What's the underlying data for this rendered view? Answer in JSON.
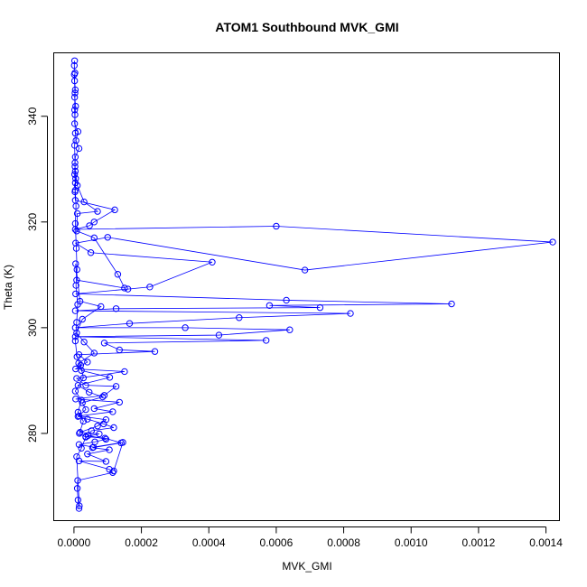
{
  "chart_data": {
    "type": "line",
    "title": "ATOM1 Southbound MVK_GMI",
    "xlabel": "MVK_GMI",
    "ylabel": "Theta (K)",
    "xlim": [
      -6e-05,
      0.00144
    ],
    "ylim": [
      263.5,
      352
    ],
    "x_ticks": [
      0.0,
      0.0002,
      0.0004,
      0.0006,
      0.0008,
      0.001,
      0.0012,
      0.0014
    ],
    "x_tick_labels": [
      "0.0000",
      "0.0002",
      "0.0004",
      "0.0006",
      "0.0008",
      "0.0010",
      "0.0012",
      "0.0014"
    ],
    "y_ticks": [
      280,
      300,
      320,
      340
    ],
    "y_tick_labels": [
      "280",
      "300",
      "320",
      "340"
    ],
    "series_color": "#0000ff",
    "marker": "open-circle",
    "grid": false,
    "series": [
      {
        "points": [
          [
            2e-06,
            350.5
          ],
          [
            1e-06,
            349.6
          ],
          [
            3e-06,
            348.2
          ],
          [
            2e-06,
            346.7
          ],
          [
            4e-06,
            345.0
          ],
          [
            2e-06,
            343.6
          ],
          [
            5e-06,
            341.9
          ],
          [
            3e-06,
            340.3
          ],
          [
            2e-06,
            338.6
          ],
          [
            1.2e-05,
            337.1
          ],
          [
            6e-06,
            335.4
          ],
          [
            1.5e-05,
            333.9
          ],
          [
            4e-06,
            332.3
          ],
          [
            3e-06,
            330.5
          ],
          [
            2e-06,
            329.0
          ],
          [
            4e-06,
            327.4
          ],
          [
            3e-06,
            325.7
          ],
          [
            4e-06,
            324.1
          ],
          [
            0.000121,
            322.3
          ],
          [
            6e-05,
            320.0
          ],
          [
            4.6e-05,
            319.3
          ],
          [
            4e-06,
            318.6
          ],
          [
            0.0006,
            319.2
          ],
          [
            0.00142,
            316.2
          ],
          [
            0.000685,
            310.9
          ],
          [
            0.0001,
            317.1
          ],
          [
            5e-06,
            316.0
          ],
          [
            5e-05,
            314.2
          ],
          [
            0.00041,
            312.4
          ],
          [
            0.000225,
            307.7
          ],
          [
            0.00016,
            307.3
          ],
          [
            5e-06,
            306.4
          ],
          [
            0.00063,
            305.2
          ],
          [
            0.00112,
            304.5
          ],
          [
            0.00058,
            304.2
          ],
          [
            0.00073,
            303.8
          ],
          [
            0.000125,
            303.6
          ],
          [
            4e-06,
            303.2
          ],
          [
            0.00082,
            302.7
          ],
          [
            0.00049,
            301.9
          ],
          [
            0.000165,
            300.8
          ],
          [
            4e-06,
            300.0
          ],
          [
            0.00033,
            300.0
          ],
          [
            0.00064,
            299.6
          ],
          [
            0.00043,
            298.6
          ],
          [
            4e-06,
            298.3
          ],
          [
            0.00057,
            297.6
          ],
          [
            9e-05,
            297.1
          ],
          [
            0.000135,
            295.8
          ],
          [
            0.00024,
            295.5
          ],
          [
            1.5e-05,
            294.9
          ],
          [
            4e-05,
            293.5
          ],
          [
            5e-06,
            292.2
          ],
          [
            0.00015,
            291.7
          ],
          [
            8e-06,
            290.4
          ],
          [
            3.5e-05,
            289.1
          ],
          [
            0.000125,
            288.9
          ],
          [
            9e-05,
            287.2
          ],
          [
            5e-06,
            286.5
          ],
          [
            0.000135,
            285.9
          ],
          [
            6e-05,
            284.7
          ],
          [
            0.000115,
            284.1
          ],
          [
            1.5e-05,
            283.3
          ],
          [
            9.5e-05,
            282.6
          ],
          [
            7e-05,
            281.4
          ],
          [
            1.8e-05,
            280.2
          ],
          [
            7.5e-05,
            279.9
          ],
          [
            3.5e-05,
            279.4
          ],
          [
            9.2e-05,
            279.1
          ],
          [
            0.00014,
            278.2
          ],
          [
            5.5e-05,
            277.3
          ],
          [
            0.000105,
            276.9
          ],
          [
            4e-05,
            276.1
          ],
          [
            9.5e-05,
            274.7
          ],
          [
            1.5e-05,
            274.8
          ],
          [
            0.000105,
            273.2
          ],
          [
            0.000115,
            272.6
          ],
          [
            1.1e-05,
            271.1
          ],
          [
            1e-05,
            269.6
          ],
          [
            1.2e-05,
            267.4
          ],
          [
            1.5e-05,
            265.8
          ]
        ]
      },
      {
        "points": [
          [
            4e-06,
            329.6
          ],
          [
            1e-05,
            326.9
          ],
          [
            3e-05,
            323.8
          ],
          [
            7e-05,
            322.0
          ],
          [
            1e-05,
            321.6
          ],
          [
            8e-06,
            318.3
          ],
          [
            6e-05,
            317.0
          ],
          [
            0.00013,
            310.1
          ],
          [
            0.00015,
            307.5
          ],
          [
            8e-06,
            309.0
          ],
          [
            5e-06,
            312.1
          ],
          [
            1.8e-05,
            305.0
          ],
          [
            8e-05,
            304.0
          ],
          [
            2.5e-05,
            301.6
          ],
          [
            8e-06,
            299.0
          ],
          [
            3e-05,
            297.3
          ],
          [
            6e-05,
            295.2
          ],
          [
            1.4e-05,
            293.3
          ],
          [
            2.2e-05,
            291.9
          ],
          [
            0.000106,
            290.6
          ],
          [
            1.2e-05,
            289.1
          ],
          [
            4.5e-05,
            287.8
          ],
          [
            8.5e-05,
            286.9
          ],
          [
            2.5e-05,
            285.8
          ],
          [
            3.5e-05,
            284.5
          ],
          [
            1.2e-05,
            283.2
          ],
          [
            4e-05,
            282.7
          ],
          [
            8.8e-05,
            281.8
          ],
          [
            0.000118,
            281.1
          ],
          [
            5.2e-05,
            280.5
          ],
          [
            4.2e-05,
            279.6
          ],
          [
            9.5e-05,
            278.9
          ],
          [
            6.2e-05,
            278.4
          ],
          [
            1.5e-05,
            277.9
          ],
          [
            5.8e-05,
            277.4
          ],
          [
            0.000145,
            278.3
          ],
          [
            0.000118,
            272.9
          ]
        ]
      },
      {
        "points": [
          [
            1e-06,
            347.9
          ],
          [
            3e-06,
            344.4
          ],
          [
            2e-06,
            341.2
          ],
          [
            4e-06,
            336.8
          ],
          [
            2e-06,
            334.5
          ],
          [
            3e-06,
            331.2
          ],
          [
            5e-06,
            328.2
          ],
          [
            4e-06,
            326.0
          ],
          [
            6e-06,
            323.0
          ],
          [
            4e-06,
            319.7
          ],
          [
            7e-06,
            315.0
          ],
          [
            9e-06,
            311.0
          ],
          [
            6e-06,
            308.0
          ],
          [
            1.1e-05,
            304.4
          ],
          [
            8e-06,
            301.0
          ],
          [
            4e-06,
            297.5
          ],
          [
            9e-06,
            294.5
          ],
          [
            2e-05,
            292.9
          ],
          [
            2.8e-05,
            290.5
          ],
          [
            4e-06,
            288.0
          ],
          [
            2.2e-05,
            286.3
          ],
          [
            1.2e-05,
            284.0
          ],
          [
            2.8e-05,
            282.3
          ],
          [
            1.6e-05,
            280.0
          ],
          [
            3.5e-05,
            279.3
          ],
          [
            2.2e-05,
            277.2
          ],
          [
            8e-06,
            275.6
          ],
          [
            1.6e-05,
            266.3
          ]
        ]
      }
    ]
  }
}
